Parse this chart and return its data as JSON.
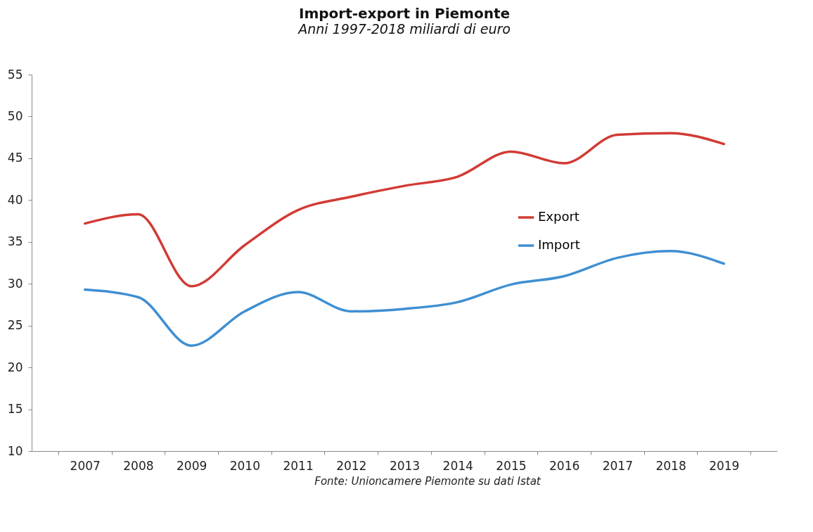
{
  "chart_data": {
    "type": "line",
    "title": "Import-export in Piemonte",
    "subtitle": "Anni 1997-2018 miliardi di euro",
    "categories": [
      "2007",
      "2008",
      "2009",
      "2010",
      "2011",
      "2012",
      "2013",
      "2014",
      "2015",
      "2016",
      "2017",
      "2018",
      "2019"
    ],
    "series": [
      {
        "name": "Export",
        "color": "#d13b35",
        "values": [
          37.2,
          38.3,
          29.7,
          34.6,
          38.8,
          40.4,
          41.7,
          42.8,
          45.8,
          44.4,
          47.8,
          48.0,
          46.7
        ]
      },
      {
        "name": "Import",
        "color": "#3f8fd2",
        "values": [
          29.3,
          28.4,
          22.6,
          26.7,
          29.0,
          26.7,
          27.0,
          27.8,
          29.9,
          30.9,
          33.1,
          33.9,
          32.4
        ]
      }
    ],
    "ylim": [
      10,
      55
    ],
    "yticks": [
      10,
      15,
      20,
      25,
      30,
      35,
      40,
      45,
      50,
      55
    ],
    "grid": false,
    "legend": "right",
    "marker": "none",
    "line_style": "solid",
    "annotations": [
      "Fonte: Unioncamere Piemonte su dati Istat"
    ]
  }
}
